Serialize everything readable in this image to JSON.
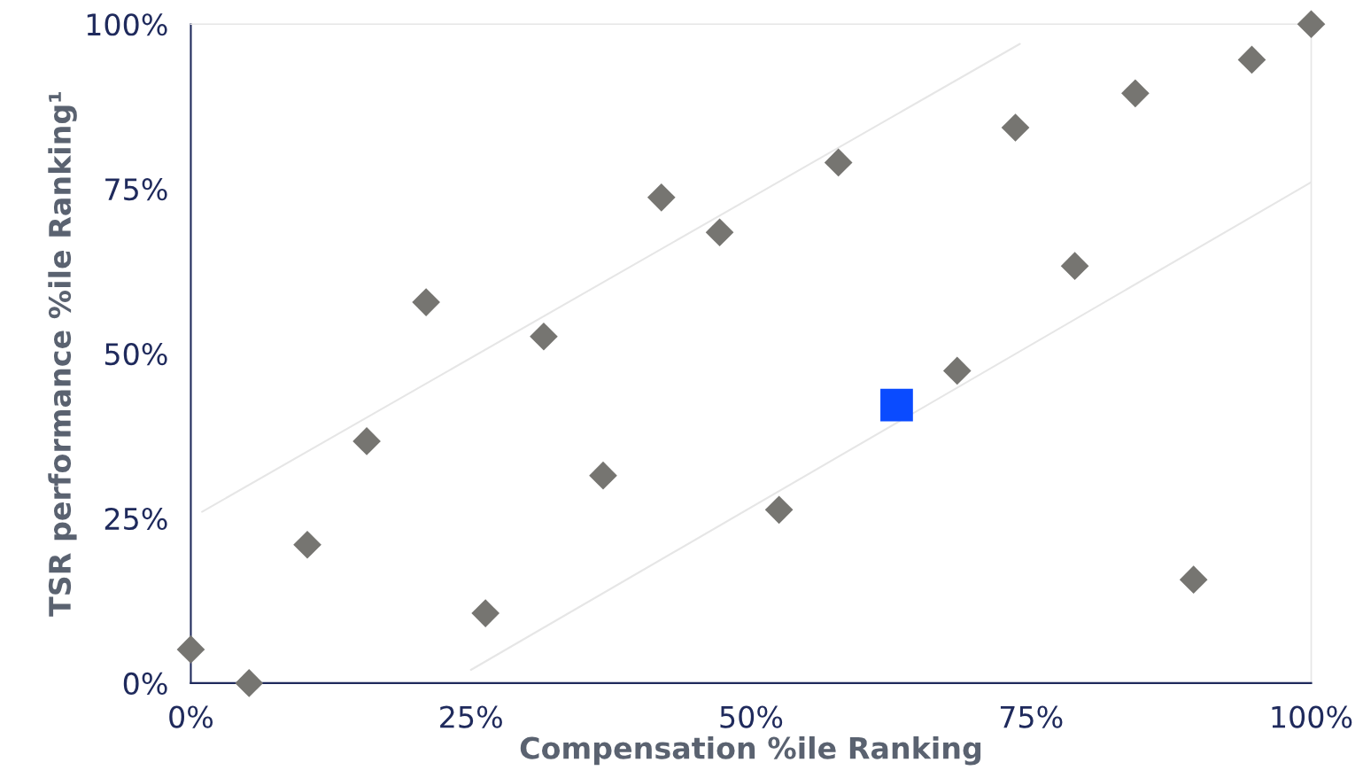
{
  "chart_data": {
    "type": "scatter",
    "xlabel": "Compensation %ile Ranking",
    "ylabel": "TSR performance %ile Ranking¹",
    "xlim": [
      0,
      100
    ],
    "ylim": [
      0,
      100
    ],
    "xticks": [
      {
        "value": 0,
        "label": "0%"
      },
      {
        "value": 25,
        "label": "25%"
      },
      {
        "value": 50,
        "label": "50%"
      },
      {
        "value": 75,
        "label": "75%"
      },
      {
        "value": 100,
        "label": "100%"
      }
    ],
    "yticks": [
      {
        "value": 0,
        "label": "0%"
      },
      {
        "value": 25,
        "label": "25%"
      },
      {
        "value": 50,
        "label": "50%"
      },
      {
        "value": 75,
        "label": "75%"
      },
      {
        "value": 100,
        "label": "100%"
      }
    ],
    "grid": false,
    "legend": false,
    "series": [
      {
        "type": "line",
        "color": "#e6e6e6",
        "marker": "none",
        "x": [
          1,
          74
        ],
        "values": [
          26,
          97
        ]
      },
      {
        "type": "line",
        "color": "#e6e6e6",
        "marker": "none",
        "x": [
          25,
          100
        ],
        "values": [
          2,
          76
        ]
      },
      {
        "color": "#767571",
        "marker": "diamond",
        "x": [
          0,
          5.2,
          10.4,
          15.7,
          21,
          26.3,
          31.5,
          36.8,
          42,
          47.2,
          52.5,
          57.8,
          68.4,
          73.6,
          78.9,
          84.3,
          89.5,
          94.7,
          100
        ],
        "values": [
          5.1,
          0,
          21,
          36.7,
          57.8,
          10.6,
          52.6,
          31.5,
          73.7,
          68.4,
          26.3,
          79,
          47.4,
          84.3,
          63.3,
          89.5,
          15.7,
          94.6,
          100
        ]
      },
      {
        "color": "#0a4bff",
        "marker": "square",
        "x": [
          63
        ],
        "values": [
          42.2
        ]
      }
    ]
  }
}
